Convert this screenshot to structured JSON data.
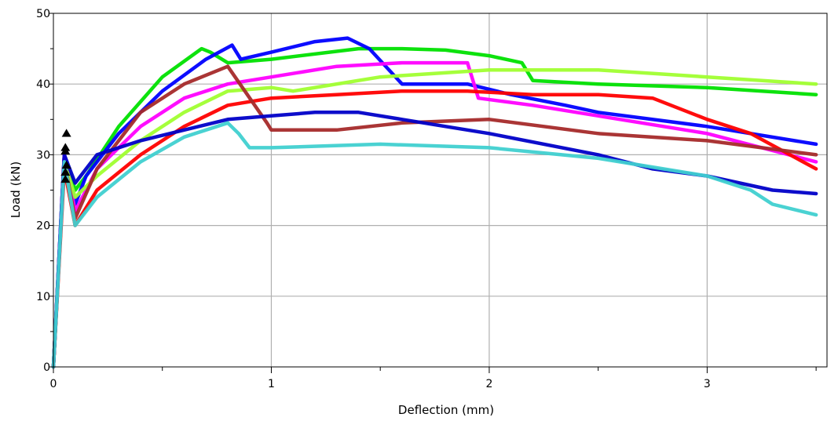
{
  "chart_data": {
    "type": "line",
    "title": "",
    "xlabel": "Deflection (mm)",
    "ylabel": "Load (kN)",
    "xlim": [
      0,
      3.55
    ],
    "ylim": [
      0,
      50
    ],
    "xticks": [
      0,
      1,
      2,
      3
    ],
    "xtick_labels": [
      "0",
      "1",
      "2",
      "3"
    ],
    "yticks": [
      0,
      10,
      20,
      30,
      40,
      50
    ],
    "ytick_labels": [
      "0",
      "10",
      "20",
      "30",
      "40",
      "50"
    ],
    "grid": true,
    "legend": "none",
    "series": [
      {
        "color": "#00e000",
        "x": [
          0,
          0.05,
          0.1,
          0.15,
          0.3,
          0.5,
          0.68,
          0.72,
          0.8,
          1.0,
          1.4,
          1.6,
          1.8,
          2.0,
          2.15,
          2.2,
          2.5,
          3.0,
          3.5
        ],
        "y": [
          0,
          30,
          25,
          27,
          34,
          41,
          45,
          44.5,
          43,
          43.5,
          45,
          45,
          44.8,
          44,
          43,
          40.5,
          40,
          39.5,
          38.5
        ]
      },
      {
        "color": "#0000ff",
        "x": [
          0,
          0.05,
          0.1,
          0.15,
          0.3,
          0.5,
          0.7,
          0.82,
          0.86,
          1.0,
          1.2,
          1.35,
          1.45,
          1.6,
          1.9,
          2.1,
          2.35,
          2.5,
          3.0,
          3.5
        ],
        "y": [
          0,
          30,
          23,
          27,
          33,
          39,
          43.5,
          45.5,
          43.5,
          44.5,
          46,
          46.5,
          45,
          40,
          40,
          38.5,
          37,
          36,
          34,
          31.5
        ]
      },
      {
        "color": "#ff00ff",
        "x": [
          0,
          0.05,
          0.1,
          0.2,
          0.4,
          0.6,
          0.8,
          1.0,
          1.3,
          1.6,
          1.9,
          1.95,
          2.2,
          2.4,
          2.6,
          3.0,
          3.5
        ],
        "y": [
          0,
          30,
          22,
          28,
          34,
          38,
          40,
          41,
          42.5,
          43,
          43,
          38,
          37,
          36,
          35,
          33,
          29
        ]
      },
      {
        "color": "#a0ff30",
        "x": [
          0,
          0.05,
          0.1,
          0.2,
          0.4,
          0.6,
          0.8,
          1.0,
          1.1,
          1.5,
          2.0,
          2.5,
          3.0,
          3.5
        ],
        "y": [
          0,
          29,
          24,
          27,
          32,
          36,
          39,
          39.5,
          39,
          41,
          42,
          42,
          41,
          40
        ]
      },
      {
        "color": "#ff0000",
        "x": [
          0,
          0.05,
          0.1,
          0.2,
          0.4,
          0.6,
          0.8,
          1.0,
          1.3,
          1.6,
          1.9,
          2.2,
          2.5,
          2.75,
          3.0,
          3.2,
          3.5
        ],
        "y": [
          0,
          28,
          20,
          25,
          30,
          34,
          37,
          38,
          38.5,
          39,
          39,
          38.5,
          38.5,
          38,
          35,
          33,
          28
        ]
      },
      {
        "color": "#a52a2a",
        "x": [
          0,
          0.05,
          0.1,
          0.2,
          0.4,
          0.6,
          0.8,
          0.98,
          1.0,
          1.3,
          1.6,
          2.0,
          2.5,
          3.0,
          3.5
        ],
        "y": [
          0,
          29,
          21,
          28,
          36,
          40,
          42.5,
          34.5,
          33.5,
          33.5,
          34.5,
          35,
          33,
          32,
          30
        ]
      },
      {
        "color": "#0000c8",
        "x": [
          0,
          0.05,
          0.1,
          0.2,
          0.4,
          0.6,
          0.8,
          1.0,
          1.2,
          1.4,
          1.6,
          2.0,
          2.5,
          2.75,
          3.0,
          3.3,
          3.5
        ],
        "y": [
          0,
          30,
          26,
          30,
          32,
          33.5,
          35,
          35.5,
          36,
          36,
          35,
          33,
          30,
          28,
          27,
          25,
          24.5
        ]
      },
      {
        "color": "#40d0d0",
        "x": [
          0,
          0.05,
          0.1,
          0.2,
          0.4,
          0.6,
          0.8,
          0.85,
          0.9,
          1.0,
          1.5,
          2.0,
          2.5,
          3.0,
          3.2,
          3.3,
          3.5
        ],
        "y": [
          0,
          29,
          20,
          24,
          29,
          32.5,
          34.5,
          33,
          31,
          31,
          31.5,
          31,
          29.5,
          27,
          25,
          23,
          21.5
        ]
      }
    ],
    "markers": {
      "type": "triangle",
      "color": "#000000",
      "x": [
        0.055,
        0.055,
        0.06,
        0.055,
        0.06,
        0.055
      ],
      "y": [
        26.5,
        27.5,
        28.5,
        30.5,
        33,
        31
      ]
    }
  }
}
